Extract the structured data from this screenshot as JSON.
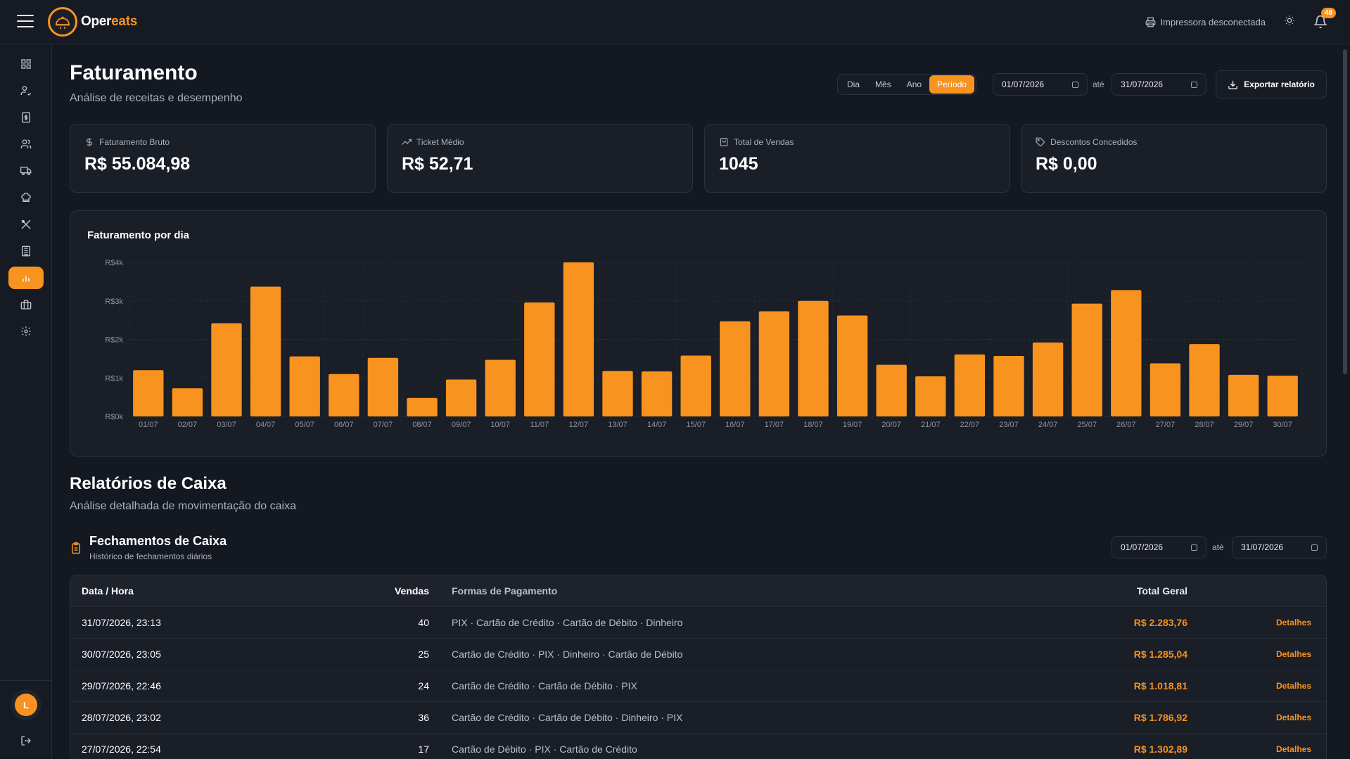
{
  "brand": {
    "name_part1": "Oper",
    "name_part2": "eats",
    "accent": "#f7931e"
  },
  "topbar": {
    "printer_status": "Impressora desconectada",
    "notification_count": "48"
  },
  "sidebar": {
    "items": [
      {
        "icon": "dashboard-icon"
      },
      {
        "icon": "user-check-icon"
      },
      {
        "icon": "receipt-dollar-icon"
      },
      {
        "icon": "users-icon"
      },
      {
        "icon": "truck-icon"
      },
      {
        "icon": "chef-hat-icon"
      },
      {
        "icon": "utensils-icon"
      },
      {
        "icon": "calculator-icon"
      },
      {
        "icon": "bar-chart-icon",
        "active": true
      },
      {
        "icon": "briefcase-icon"
      },
      {
        "icon": "settings-icon"
      }
    ],
    "user_initial": "L"
  },
  "header": {
    "title": "Faturamento",
    "subtitle": "Análise de receitas e desempenho",
    "period_options": [
      "Dia",
      "Mês",
      "Ano",
      "Período"
    ],
    "period_selected": "Período",
    "date_from": "01/07/2026",
    "date_to": "31/07/2026",
    "date_sep": "até",
    "export_label": "Exportar relatório"
  },
  "stats": [
    {
      "label": "Faturamento Bruto",
      "value": "R$ 55.084,98",
      "icon": "dollar-icon"
    },
    {
      "label": "Ticket Médio",
      "value": "R$ 52,71",
      "icon": "trending-up-icon"
    },
    {
      "label": "Total de Vendas",
      "value": "1045",
      "icon": "shopping-bag-icon"
    },
    {
      "label": "Descontos Concedidos",
      "value": "R$ 0,00",
      "icon": "tag-icon"
    }
  ],
  "chart_data": {
    "type": "bar",
    "title": "Faturamento por dia",
    "categories": [
      "01/07",
      "02/07",
      "03/07",
      "04/07",
      "05/07",
      "06/07",
      "07/07",
      "08/07",
      "09/07",
      "10/07",
      "11/07",
      "12/07",
      "13/07",
      "14/07",
      "15/07",
      "16/07",
      "17/07",
      "18/07",
      "19/07",
      "20/07",
      "21/07",
      "22/07",
      "23/07",
      "24/07",
      "25/07",
      "26/07",
      "27/07",
      "28/07",
      "29/07",
      "30/07"
    ],
    "values": [
      1200,
      730,
      2420,
      3370,
      1560,
      1100,
      1520,
      480,
      960,
      1470,
      2960,
      4000,
      1180,
      1170,
      1580,
      2470,
      2730,
      3000,
      2620,
      1340,
      1040,
      1610,
      1570,
      1920,
      2930,
      3280,
      1380,
      1880,
      1080,
      1060
    ],
    "ylim": [
      0,
      4000
    ],
    "y_ticks": [
      0,
      1000,
      2000,
      3000,
      4000
    ],
    "y_tick_labels": [
      "R$0k",
      "R$1k",
      "R$2k",
      "R$3k",
      "R$4k"
    ],
    "grid": true,
    "bar_color": "#f7931e"
  },
  "reports": {
    "title": "Relatórios de Caixa",
    "subtitle": "Análise detalhada de movimentação do caixa",
    "closings_title": "Fechamentos de Caixa",
    "closings_subtitle": "Histórico de fechamentos diários",
    "date_from": "01/07/2026",
    "date_to": "31/07/2026",
    "date_sep": "até"
  },
  "table": {
    "headers": {
      "date": "Data / Hora",
      "sales": "Vendas",
      "payments": "Formas de Pagamento",
      "total": "Total Geral"
    },
    "rows": [
      {
        "date": "31/07/2026, 23:13",
        "sales": "40",
        "payments": "PIX · Cartão de Crédito · Cartão de Débito · Dinheiro",
        "total": "R$ 2.283,76",
        "action": "Detalhes"
      },
      {
        "date": "30/07/2026, 23:05",
        "sales": "25",
        "payments": "Cartão de Crédito · PIX · Dinheiro · Cartão de Débito",
        "total": "R$ 1.285,04",
        "action": "Detalhes"
      },
      {
        "date": "29/07/2026, 22:46",
        "sales": "24",
        "payments": "Cartão de Crédito · Cartão de Débito · PIX",
        "total": "R$ 1.018,81",
        "action": "Detalhes"
      },
      {
        "date": "28/07/2026, 23:02",
        "sales": "36",
        "payments": "Cartão de Crédito · Cartão de Débito · Dinheiro · PIX",
        "total": "R$ 1.786,92",
        "action": "Detalhes"
      },
      {
        "date": "27/07/2026, 22:54",
        "sales": "17",
        "payments": "Cartão de Débito · PIX · Cartão de Crédito",
        "total": "R$ 1.302,89",
        "action": "Detalhes"
      }
    ]
  }
}
